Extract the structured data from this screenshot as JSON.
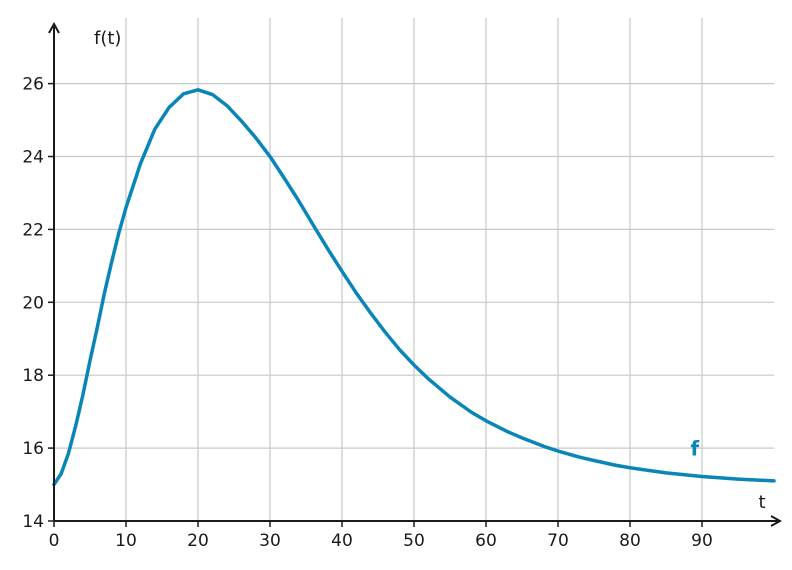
{
  "chart_data": {
    "type": "line",
    "xlabel": "t",
    "ylabel": "f(t)",
    "xlim": [
      0,
      100
    ],
    "ylim": [
      14,
      27.8
    ],
    "x_ticks": [
      0,
      10,
      20,
      30,
      40,
      50,
      60,
      70,
      80,
      90
    ],
    "y_ticks": [
      14,
      16,
      18,
      20,
      22,
      24,
      26
    ],
    "grid": true,
    "series": [
      {
        "name": "f",
        "color": "#0a85b8",
        "x": [
          0,
          1,
          2,
          3,
          4,
          5,
          6,
          7,
          8,
          9,
          10,
          12,
          14,
          16,
          18,
          20,
          22,
          24,
          26,
          28,
          30,
          32,
          34,
          36,
          38,
          40,
          42,
          44,
          46,
          48,
          50,
          52,
          55,
          58,
          60,
          63,
          65,
          68,
          70,
          73,
          75,
          78,
          80,
          85,
          90,
          95,
          100
        ],
        "y": [
          15.0,
          15.3,
          15.85,
          16.6,
          17.45,
          18.4,
          19.3,
          20.25,
          21.1,
          21.9,
          22.6,
          23.8,
          24.75,
          25.35,
          25.72,
          25.83,
          25.7,
          25.4,
          24.98,
          24.52,
          24.0,
          23.4,
          22.78,
          22.12,
          21.47,
          20.85,
          20.25,
          19.7,
          19.18,
          18.7,
          18.28,
          17.9,
          17.4,
          16.98,
          16.75,
          16.45,
          16.28,
          16.05,
          15.92,
          15.75,
          15.66,
          15.53,
          15.46,
          15.32,
          15.22,
          15.15,
          15.1
        ]
      }
    ]
  }
}
